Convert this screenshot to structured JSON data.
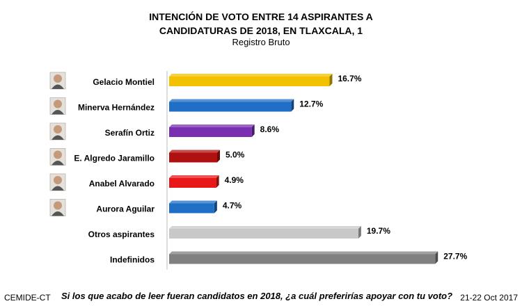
{
  "chart_data": {
    "type": "bar",
    "orientation": "horizontal",
    "title_lines": [
      "INTENCIÓN DE VOTO ENTRE 14 ASPIRANTES A",
      "CANDIDATURAS DE 2018, EN TLAXCALA, 1"
    ],
    "subtitle": "Registro Bruto",
    "categories": [
      "Gelacio Montiel",
      "Minerva Hernández",
      "Serafín Ortiz",
      "E. Algredo Jaramillo",
      "Anabel Alvarado",
      "Aurora Aguilar",
      "Otros aspirantes",
      "Indefinidos"
    ],
    "values": [
      16.7,
      12.7,
      8.6,
      5.0,
      4.9,
      4.7,
      19.7,
      27.7
    ],
    "value_labels": [
      "16.7%",
      "12.7%",
      "8.6%",
      "5.0%",
      "4.9%",
      "4.7%",
      "19.7%",
      "27.7%"
    ],
    "colors": [
      "#f2c200",
      "#1f6fc6",
      "#7a2fb0",
      "#b01010",
      "#e81818",
      "#1f6fc6",
      "#c8c8c8",
      "#808080"
    ],
    "xlim": [
      0,
      30
    ],
    "grid": false,
    "legend": "none",
    "avatar_icons": [
      "person-photo",
      "person-photo",
      "person-photo",
      "person-photo",
      "person-photo",
      "person-photo"
    ]
  },
  "footer": {
    "source": "CEMIDE-CT",
    "question": "Si los que acabo de leer fueran candidatos en 2018, ¿a cuál preferirías apoyar con tu voto?",
    "date": "21-22 Oct 2017"
  }
}
